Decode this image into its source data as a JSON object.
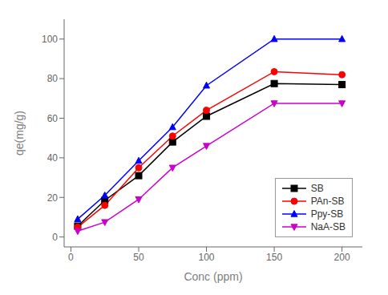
{
  "chart_data": {
    "type": "line",
    "x": [
      5,
      25,
      50,
      75,
      100,
      150,
      200
    ],
    "series": [
      {
        "name": "SB",
        "color": "#000000",
        "marker": "square",
        "line_style": "solid",
        "values": [
          5.5,
          18.5,
          31,
          48,
          61,
          77.5,
          77
        ]
      },
      {
        "name": "PAn-SB",
        "color": "#ff0000",
        "marker": "circle",
        "line_style": "solid",
        "values": [
          5,
          16,
          35,
          51,
          64,
          83.5,
          82
        ]
      },
      {
        "name": "Ppy-SB",
        "color": "#0000ff",
        "marker": "triangle",
        "line_style": "solid",
        "values": [
          9,
          21,
          38.5,
          55.5,
          76.5,
          100,
          100
        ]
      },
      {
        "name": "NaA-SB",
        "color": "#cc00cc",
        "marker": "triangle-down",
        "line_style": "solid",
        "values": [
          3,
          7.5,
          19,
          35,
          46,
          67.5,
          67.5
        ]
      }
    ],
    "xlabel": "Conc (ppm)",
    "ylabel": "qe(mg/g)",
    "xlim": [
      -5,
      215
    ],
    "ylim": [
      -5,
      110
    ],
    "xticks": [
      0,
      50,
      100,
      150,
      200
    ],
    "yticks": [
      0,
      20,
      40,
      60,
      80,
      100
    ],
    "legend": "lower right",
    "grid": false
  }
}
